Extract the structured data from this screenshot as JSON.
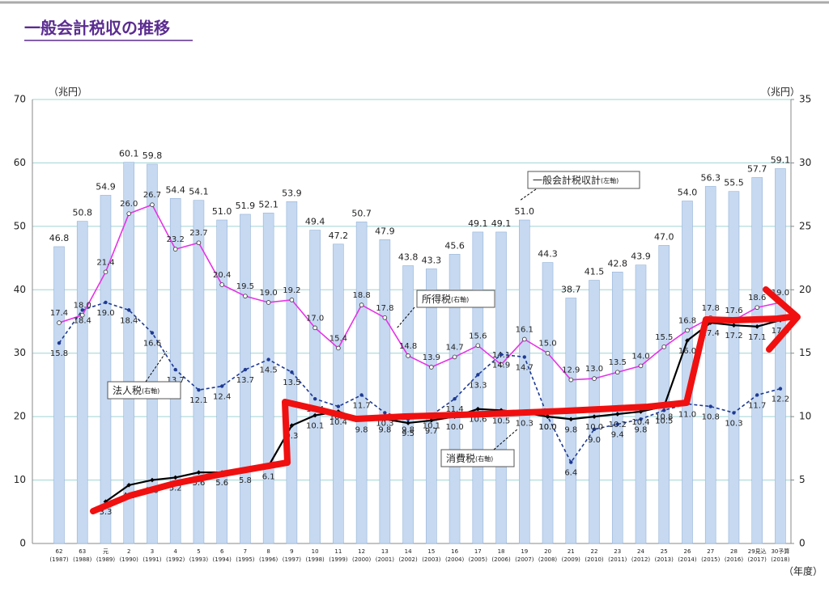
{
  "chart_data": {
    "type": "bar_line",
    "title": "一般会計税収の推移",
    "y_unit": "（兆円）",
    "y2_unit": "（兆円）",
    "x_unit": "（年度）",
    "categories": [
      "62",
      "63",
      "元",
      "2",
      "3",
      "4",
      "5",
      "6",
      "7",
      "8",
      "9",
      "10",
      "11",
      "12",
      "13",
      "14",
      "15",
      "16",
      "17",
      "18",
      "19",
      "20",
      "21",
      "22",
      "23",
      "24",
      "25",
      "26",
      "27",
      "28",
      "29見込",
      "30予算"
    ],
    "category_years": [
      "(1987)",
      "(1988)",
      "(1989)",
      "(1990)",
      "(1991)",
      "(1992)",
      "(1993)",
      "(1994)",
      "(1995)",
      "(1996)",
      "(1997)",
      "(1998)",
      "(1999)",
      "(2000)",
      "(2001)",
      "(2002)",
      "(2003)",
      "(2004)",
      "(2005)",
      "(2006)",
      "(2007)",
      "(2008)",
      "(2009)",
      "(2010)",
      "(2011)",
      "(2012)",
      "(2013)",
      "(2014)",
      "(2015)",
      "(2016)",
      "(2017)",
      "(2018)"
    ],
    "ylim": [
      0,
      70
    ],
    "yticks": [
      0,
      10,
      20,
      30,
      40,
      50,
      60,
      70
    ],
    "y2lim": [
      0,
      35
    ],
    "y2ticks": [
      0,
      5,
      10,
      15,
      20,
      25,
      30,
      35
    ],
    "grid": true,
    "series": [
      {
        "name": "一般会計税収計",
        "axis_note": "(左軸)",
        "kind": "bar",
        "color": "#c6d9f1",
        "edge": "#95b3d7",
        "values": [
          46.8,
          50.8,
          54.9,
          60.1,
          59.8,
          54.4,
          54.1,
          51.0,
          51.9,
          52.1,
          53.9,
          49.4,
          47.2,
          50.7,
          47.9,
          43.8,
          43.3,
          45.6,
          49.1,
          49.1,
          51.0,
          44.3,
          38.7,
          41.5,
          42.8,
          43.9,
          47.0,
          54.0,
          56.3,
          55.5,
          57.7,
          59.1
        ],
        "value_labels": [
          "46.8",
          "50.8",
          "54.9",
          "60.1",
          "59.8",
          "54.4",
          "54.1",
          "51.0",
          "51.9",
          "52.1",
          "53.9",
          "49.4",
          "47.2",
          "50.7",
          "47.9",
          "43.8",
          "43.3",
          "45.6",
          "49.1",
          "49.1",
          "51.0",
          "44.3",
          "38.7",
          "41.5",
          "42.8",
          "43.9",
          "47.0",
          "54.0",
          "56.3",
          "55.5",
          "57.7",
          "59.1"
        ]
      },
      {
        "name": "所得税",
        "axis_note": "(右軸)",
        "kind": "line",
        "axis": "y2",
        "color": "#e633e6",
        "dash": false,
        "values": [
          17.4,
          18.0,
          21.4,
          26.0,
          26.7,
          23.2,
          23.7,
          20.4,
          19.5,
          19.0,
          19.2,
          17.0,
          15.4,
          18.8,
          17.8,
          14.8,
          13.9,
          14.7,
          15.6,
          14.1,
          16.1,
          15.0,
          12.9,
          13.0,
          13.5,
          14.0,
          15.5,
          16.8,
          17.8,
          17.6,
          18.6,
          19.0
        ],
        "value_labels": [
          "17.4",
          "18.0",
          "21.4",
          "26.0",
          "26.7",
          "23.2",
          "23.7",
          "20.4",
          "19.5",
          "19.0",
          "19.2",
          "17.0",
          "15.4",
          "18.8",
          "17.8",
          "14.8",
          "13.9",
          "14.7",
          "15.6",
          "14.1",
          "16.1",
          "15.0",
          "12.9",
          "13.0",
          "13.5",
          "14.0",
          "15.5",
          "16.8",
          "17.8",
          "17.6",
          "18.6",
          "19.0"
        ]
      },
      {
        "name": "法人税",
        "axis_note": "(右軸)",
        "kind": "line",
        "axis": "y2",
        "color": "#1f3a93",
        "dash": true,
        "values": [
          15.8,
          18.4,
          19.0,
          18.4,
          16.6,
          13.7,
          12.1,
          12.4,
          13.7,
          14.5,
          13.5,
          11.4,
          10.8,
          11.7,
          10.3,
          9.8,
          10.1,
          11.4,
          13.3,
          14.9,
          14.7,
          10.0,
          6.4,
          9.0,
          9.4,
          9.8,
          10.5,
          11.0,
          10.8,
          10.3,
          11.7,
          12.2
        ],
        "value_labels": [
          "15.8",
          "18.4",
          "19.0",
          "18.4",
          "16.6",
          "13.7",
          "12.1",
          "12.4",
          "13.7",
          "14.5",
          "13.5",
          "11.4",
          "10.8",
          "11.7",
          "10.3",
          "9.8",
          "10.1",
          "11.4",
          "13.3",
          "14.9",
          "14.7",
          "10.0",
          "6.4",
          "9.0",
          "9.4",
          "9.8",
          "10.5",
          "11.0",
          "10.8",
          "10.3",
          "11.7",
          "12.2"
        ]
      },
      {
        "name": "消費税",
        "axis_note": "(右軸)",
        "kind": "line",
        "axis": "y2",
        "color": "#000000",
        "dash": false,
        "values": [
          null,
          null,
          3.3,
          4.6,
          5.0,
          5.2,
          5.6,
          5.6,
          5.8,
          6.1,
          9.3,
          10.1,
          10.4,
          9.8,
          9.8,
          9.5,
          9.7,
          10.0,
          10.6,
          10.5,
          10.3,
          10.0,
          9.8,
          10.0,
          10.2,
          10.4,
          10.8,
          16.0,
          17.4,
          17.2,
          17.1,
          17.6
        ],
        "value_labels": [
          null,
          null,
          "3.3",
          "4.6",
          "5.0",
          "5.2",
          "5.6",
          "5.6",
          "5.8",
          "6.1",
          "9.3",
          "10.1",
          "10.4",
          "9.8",
          "9.8",
          "9.5",
          "9.7",
          "10.0",
          "10.6",
          "10.5",
          "10.3",
          "10.0",
          "9.8",
          "10.0",
          "10.2",
          "10.4",
          "10.8",
          "16.0",
          "17.4",
          "17.2",
          "17.1",
          "17.6"
        ]
      }
    ]
  }
}
